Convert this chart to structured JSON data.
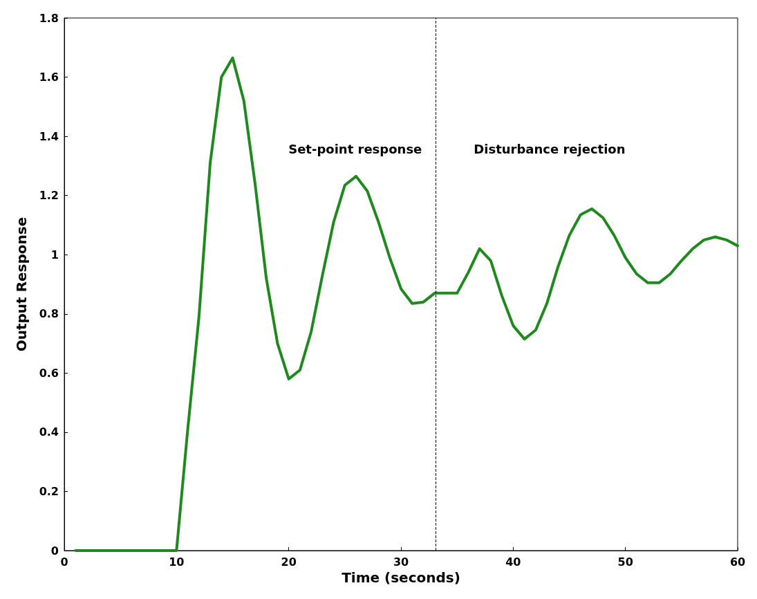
{
  "chart_data": {
    "type": "line",
    "xlabel": "Time (seconds)",
    "ylabel": "Output Response",
    "x": [
      1,
      2,
      3,
      4,
      5,
      6,
      7,
      8,
      9,
      10,
      11,
      12,
      13,
      14,
      15,
      16,
      17,
      18,
      19,
      20,
      21,
      22,
      23,
      24,
      25,
      26,
      27,
      28,
      29,
      30,
      31,
      32,
      33,
      34,
      35,
      36,
      37,
      38,
      39,
      40,
      41,
      42,
      43,
      44,
      45,
      46,
      47,
      48,
      49,
      50,
      51,
      52,
      53,
      54,
      55,
      56,
      57,
      58,
      59,
      60
    ],
    "series": [
      {
        "color": "#1e8a1e",
        "values": [
          0,
          0,
          0,
          0,
          0,
          0,
          0,
          0,
          0,
          0,
          0.41,
          0.79,
          1.31,
          1.6,
          1.665,
          1.52,
          1.24,
          0.92,
          0.7,
          0.58,
          0.61,
          0.74,
          0.93,
          1.11,
          1.235,
          1.265,
          1.215,
          1.11,
          0.99,
          0.885,
          0.835,
          0.84,
          0.87,
          0.87,
          0.87,
          0.94,
          1.02,
          0.98,
          0.86,
          0.76,
          0.715,
          0.745,
          0.835,
          0.96,
          1.065,
          1.135,
          1.155,
          1.125,
          1.065,
          0.99,
          0.935,
          0.905,
          0.905,
          0.935,
          0.98,
          1.02,
          1.05,
          1.06,
          1.05,
          1.03
        ]
      }
    ],
    "xlim": [
      0,
      60
    ],
    "xticks": [
      0,
      10,
      20,
      30,
      40,
      50,
      60
    ],
    "ylim": [
      0,
      1.8
    ],
    "yticks": [
      0,
      0.2,
      0.4,
      0.6,
      0.8,
      1,
      1.2,
      1.4,
      1.6,
      1.8
    ],
    "ref_lines": [
      {
        "axis": "x",
        "value": 33.1,
        "color": "#000000",
        "line_style": "dashed"
      }
    ],
    "annotations": [
      "Set-point response",
      "Disturbance rejection"
    ],
    "grid": false,
    "marker": "none",
    "line_style": "solid"
  }
}
